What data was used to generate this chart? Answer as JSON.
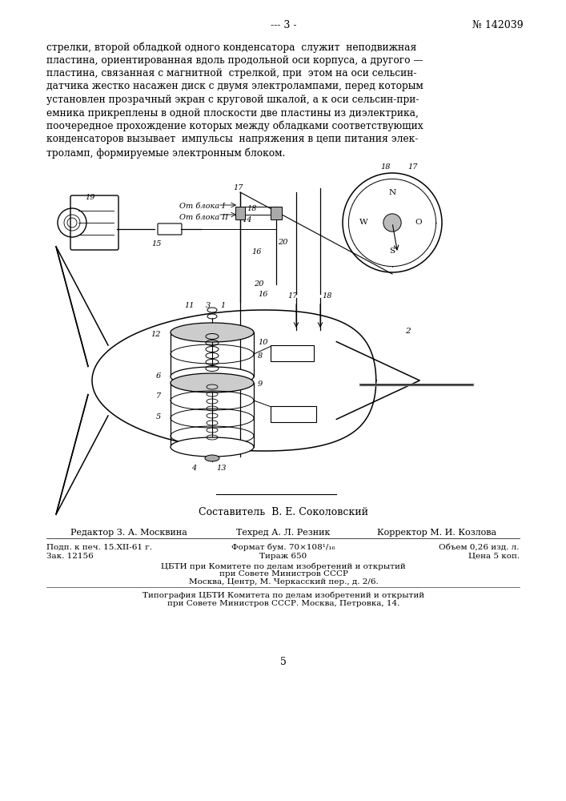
{
  "page_number_left": "--- 3 -",
  "page_number_right": "№ 142039",
  "body_text": "стрелки, второй обладкой одного конденсатора  служит  неподвижная\nпластина, ориентированная вдоль продольной оси корпуса, а другого —\nпластина, связанная с магнитной  стрелкой, при  этом на оси сельсин-\nдатчика жестко насажен диск с двумя электролампами, перед которым\nустановлен прозрачный экран с круговой шкалой, а к оси сельсин-при-\nемника прикреплены в одной плоскости две пластины из диэлектрика,\nпоочередное прохождение которых между обладками соответствующих\nконденсаторов вызывает  импульсы  напряжения в цепи питания элек-\nтроламп, формируемые электронным блоком.",
  "composer_label": "Составитель  В. Е. Соколовский",
  "editor_line1": "Редактор З. А. Москвина",
  "editor_line2": "Техред А. Л. Резник",
  "editor_line3": "Корректор М. И. Козлова",
  "line1_col1": "Подп. к печ. 15.XII-61 г.",
  "line1_col2": "Формат бум. 70×108¹/₁₆",
  "line1_col3": "Объем 0,26 изд. л.",
  "line2_col1": "Зак. 12156",
  "line2_col2": "Тираж 650",
  "line2_col3": "Цена 5 коп.",
  "line3": "ЦБТИ при Комитете по делам изобретений и открытий",
  "line4": "при Совете Министров СССР",
  "line5": "Москва, Центр, М. Черкасский пер., д. 2/6.",
  "line6": "Типография ЦБТИ Комитета по делам изобретений и открытий",
  "line7": "при Совете Министров СССР. Москва, Петровка, 14.",
  "page_num_bottom": "5",
  "bg_color": "#ffffff"
}
